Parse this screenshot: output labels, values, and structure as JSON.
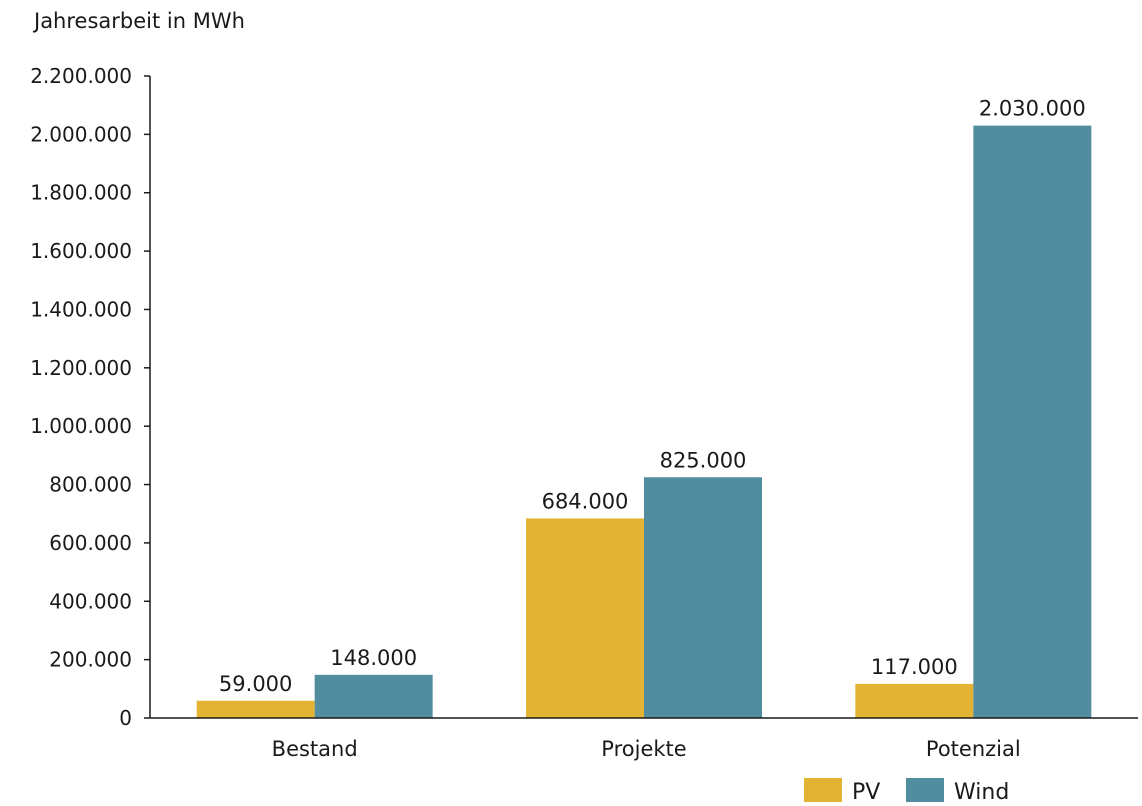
{
  "chart_data": {
    "type": "bar",
    "ylabel": "Jahresarbeit in MWh",
    "categories": [
      "Bestand",
      "Projekte",
      "Potenzial"
    ],
    "series": [
      {
        "name": "PV",
        "color": "#E3B334",
        "values": [
          59000,
          684000,
          117000
        ],
        "labels": [
          "59.000",
          "684.000",
          "117.000"
        ]
      },
      {
        "name": "Wind",
        "color": "#528D9F",
        "values": [
          148000,
          825000,
          2030000
        ],
        "labels": [
          "148.000",
          "825.000",
          "2.030.000"
        ]
      }
    ],
    "ylim": [
      0,
      2200000
    ],
    "yticks": [
      0,
      200000,
      400000,
      600000,
      800000,
      1000000,
      1200000,
      1400000,
      1600000,
      1800000,
      2000000,
      2200000
    ],
    "ytick_labels": [
      "0",
      "200.000",
      "400.000",
      "600.000",
      "800.000",
      "1.000.000",
      "1.200.000",
      "1.400.000",
      "1.600.000",
      "1.800.000",
      "2.000.000",
      "2.200.000"
    ],
    "grid": false,
    "legend_position": "bottom-right"
  }
}
